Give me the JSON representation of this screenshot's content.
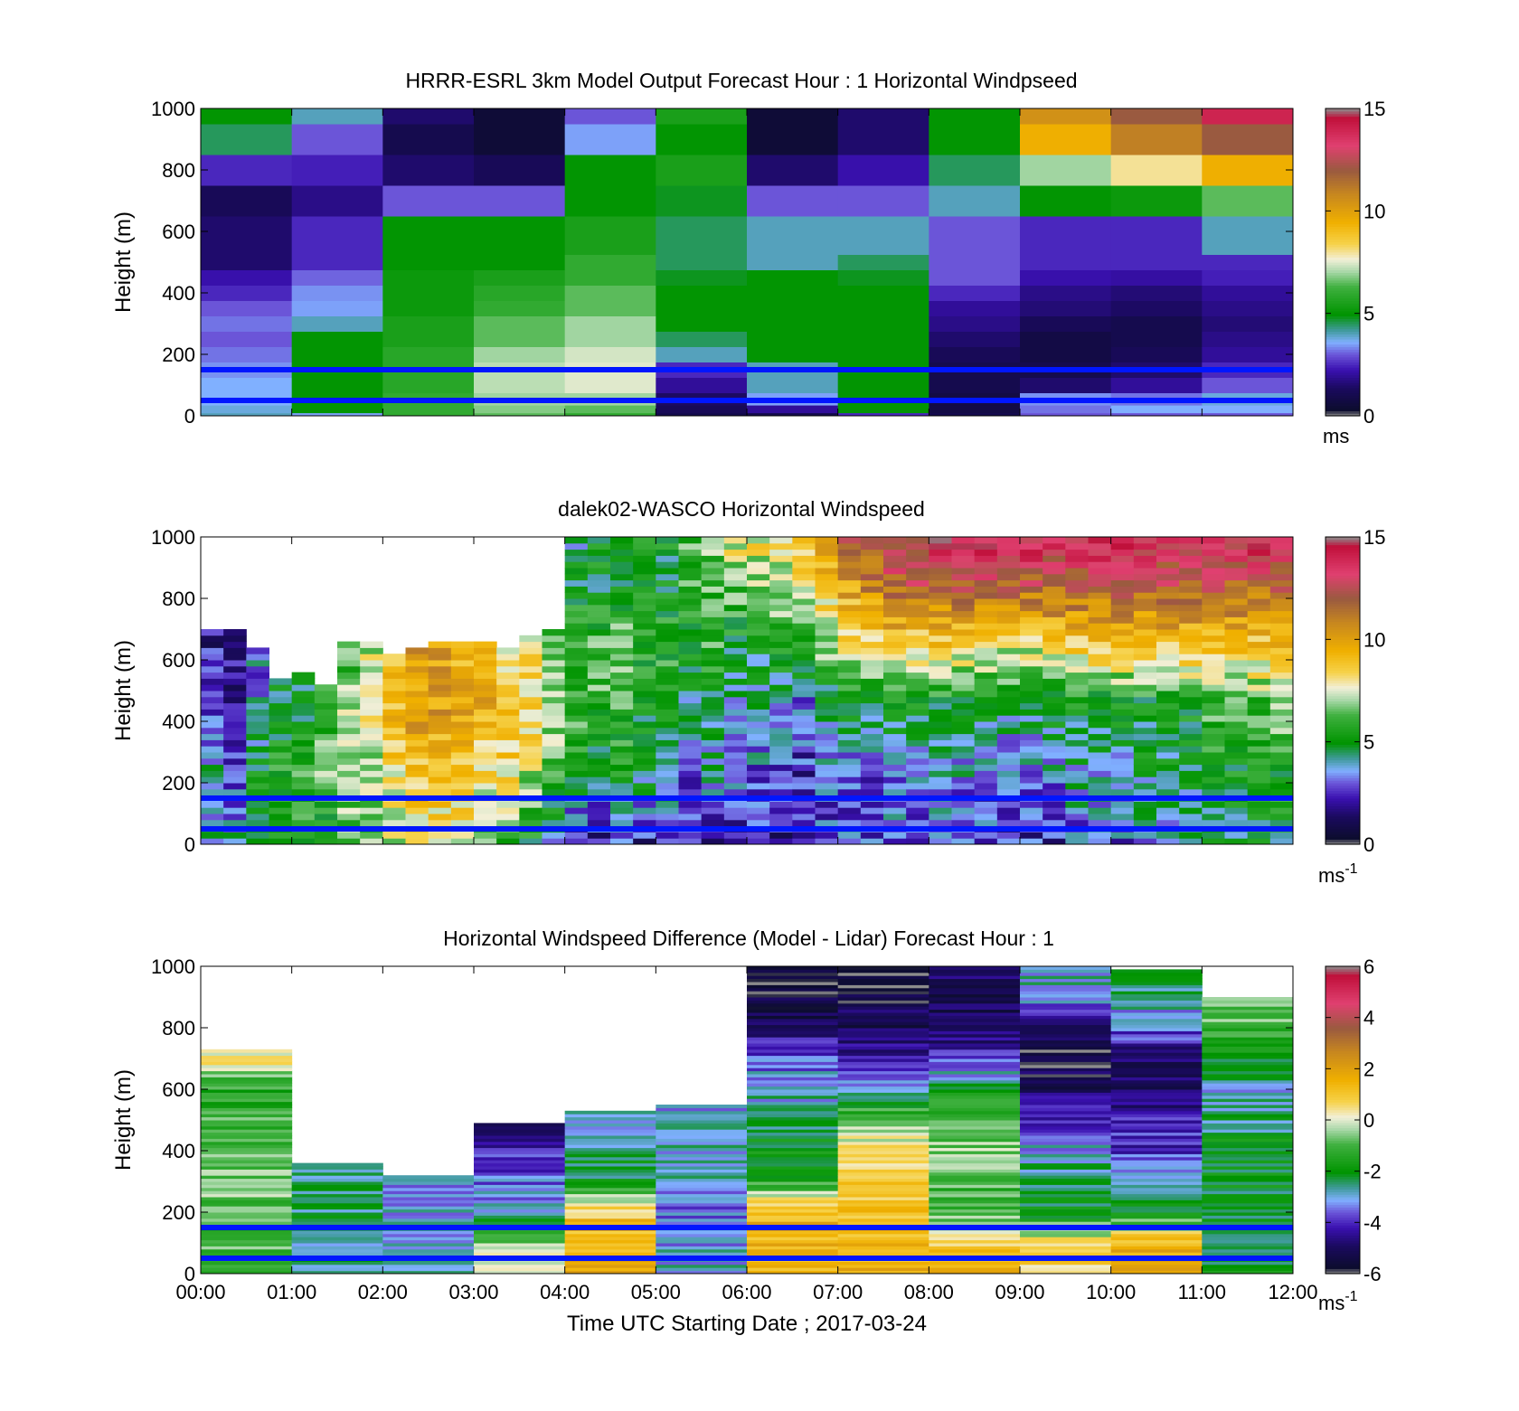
{
  "figure": {
    "xticks": [
      "00:00",
      "01:00",
      "02:00",
      "03:00",
      "04:00",
      "05:00",
      "06:00",
      "07:00",
      "08:00",
      "09:00",
      "10:00",
      "11:00",
      "12:00"
    ],
    "xlabel": "Time UTC  Starting Date ; 2017-03-24",
    "yticks": [
      "0",
      "200",
      "400",
      "600",
      "800",
      "1000"
    ],
    "reference_line_color": "#0016ff",
    "reference_heights_m": [
      150,
      50
    ]
  },
  "chart_data": [
    {
      "type": "heatmap",
      "title": "HRRR-ESRL 3km Model Output   Forecast Hour : 1 Horizontal Windpseed",
      "ylabel": "Height (m)",
      "xlim_hours": [
        0,
        12
      ],
      "ylim": [
        0,
        1000
      ],
      "colorbar": {
        "ticks": [
          "0",
          "5",
          "10",
          "15"
        ],
        "range": [
          0,
          15
        ],
        "unit": "ms"
      },
      "time_step_hours": 1,
      "height_levels_m": [
        0,
        20,
        50,
        100,
        150,
        200,
        250,
        300,
        350,
        400,
        450,
        500,
        550,
        600,
        700,
        800,
        900,
        1000
      ],
      "values": [
        [
          4,
          3.5,
          6,
          6.5,
          6,
          1,
          1,
          2.5,
          1,
          3,
          3,
          3
        ],
        [
          3.8,
          5,
          6,
          6.8,
          6.5,
          1.2,
          2,
          5,
          0.8,
          3.2,
          3.6,
          3.6
        ],
        [
          3.6,
          5,
          6,
          7,
          7,
          1.4,
          3.5,
          5,
          0.8,
          3.4,
          3.2,
          3.8
        ],
        [
          3.6,
          5,
          5.8,
          7.2,
          7.5,
          2,
          4,
          5,
          1,
          1.5,
          2,
          3
        ],
        [
          3.4,
          5,
          5.8,
          7.2,
          7.5,
          2.5,
          4,
          5,
          1,
          1,
          1.5,
          2.5
        ],
        [
          3.2,
          5,
          5.8,
          7,
          7.4,
          4,
          5,
          5,
          1.2,
          0.8,
          1.2,
          2
        ],
        [
          3,
          5,
          5.5,
          6.5,
          7,
          4.5,
          5,
          5,
          1.5,
          0.8,
          1,
          1.8
        ],
        [
          3.2,
          4,
          5.5,
          6.5,
          7,
          5,
          5,
          5,
          1.8,
          1.2,
          1,
          1.6
        ],
        [
          3,
          3.5,
          5.2,
          6,
          6.5,
          5,
          5,
          5,
          2,
          1.6,
          1.4,
          1.8
        ],
        [
          2.5,
          3.4,
          5.2,
          5.8,
          6.5,
          5,
          5,
          5,
          2.5,
          1.8,
          1.6,
          2
        ],
        [
          2.2,
          3.1,
          5.2,
          5.5,
          6,
          4.8,
          5,
          4.8,
          3,
          2.2,
          2.1,
          2.4
        ],
        [
          1.5,
          2.5,
          5,
          5,
          6,
          4.5,
          4,
          4.5,
          3,
          2.5,
          2.5,
          2.5
        ],
        [
          1.5,
          2.5,
          5,
          5,
          5.5,
          4.5,
          4,
          4,
          3,
          2.5,
          2.5,
          4
        ],
        [
          1.5,
          2.5,
          5,
          5,
          5.5,
          4.5,
          4,
          4,
          3,
          2.5,
          2.5,
          4
        ],
        [
          1.2,
          1.8,
          3,
          3,
          5,
          4.8,
          3,
          3,
          4,
          5,
          5.2,
          6.5
        ],
        [
          2.5,
          2.4,
          1.5,
          1.2,
          5,
          5.5,
          1.5,
          2.2,
          4.5,
          7,
          8,
          9.5
        ],
        [
          4.5,
          3,
          1,
          0.5,
          3.5,
          5,
          0.5,
          1.5,
          5,
          9.5,
          11,
          12
        ],
        [
          5,
          4,
          1.5,
          0.5,
          3,
          5.5,
          0.5,
          1.5,
          5,
          10.5,
          12,
          14
        ]
      ]
    },
    {
      "type": "heatmap",
      "title": "dalek02-WASCO  Horizontal Windspeed",
      "ylabel": "Height (m)",
      "xlim_hours": [
        0,
        12
      ],
      "ylim": [
        0,
        1000
      ],
      "colorbar": {
        "ticks": [
          "0",
          "5",
          "10",
          "15"
        ],
        "range": [
          0,
          15
        ],
        "unit": "ms",
        "unit_exponent": "-1"
      },
      "time_step_hours": 0.25,
      "gate_spacing_m": 20,
      "profile_tops_m": [
        700,
        700,
        640,
        540,
        550,
        520,
        650,
        660,
        620,
        640,
        650,
        650,
        650,
        640,
        680,
        700,
        1000,
        1000,
        1000,
        1000,
        1000,
        1000,
        1000,
        1000,
        1000,
        1000,
        1000,
        1000,
        1000,
        1000,
        1000,
        1000,
        1000,
        1000,
        1000,
        1000,
        1000,
        1000,
        1000,
        1000,
        1000,
        1000,
        1000,
        1000,
        1000,
        1000,
        1000,
        1000
      ],
      "profile_anchor_heights_m": [
        0,
        200,
        450,
        650,
        850,
        1000
      ],
      "profile_anchor_values": [
        [
          4,
          4,
          3,
          2,
          2,
          2
        ],
        [
          4,
          3,
          2,
          2,
          2,
          2
        ],
        [
          4.5,
          5,
          4,
          3,
          3,
          3
        ],
        [
          5,
          5.5,
          5,
          4,
          4,
          4
        ],
        [
          5,
          6,
          5,
          4,
          4,
          4
        ],
        [
          5,
          6.5,
          6,
          5,
          5,
          5
        ],
        [
          6,
          7,
          7,
          6,
          6,
          6
        ],
        [
          6.5,
          7,
          8,
          7,
          7,
          7
        ],
        [
          7,
          8,
          9,
          9,
          9,
          9
        ],
        [
          8,
          9,
          10,
          10,
          10,
          10
        ],
        [
          7.5,
          9,
          10,
          10,
          10,
          10
        ],
        [
          7,
          9,
          10,
          9,
          9,
          9
        ],
        [
          6.5,
          8,
          9.5,
          9,
          9,
          9
        ],
        [
          6,
          8,
          9,
          8,
          8,
          8
        ],
        [
          5,
          7,
          8.5,
          8,
          8,
          8
        ],
        [
          4,
          6,
          7,
          6,
          6,
          6
        ],
        [
          2,
          5,
          6,
          6,
          5,
          4
        ],
        [
          2,
          4,
          6,
          6,
          5,
          5
        ],
        [
          2.5,
          5,
          6,
          6.5,
          5,
          5
        ],
        [
          2,
          4.5,
          5,
          6,
          5,
          5
        ],
        [
          2,
          4,
          5,
          6,
          5,
          5
        ],
        [
          2.5,
          3,
          4.5,
          5.5,
          6,
          6
        ],
        [
          2,
          4,
          4.5,
          6,
          6,
          7
        ],
        [
          2,
          3.5,
          4,
          5,
          6.5,
          8
        ],
        [
          2.5,
          3,
          4,
          5,
          7,
          8
        ],
        [
          2,
          2.5,
          3.5,
          6,
          7,
          8
        ],
        [
          2.5,
          2.5,
          3,
          6,
          8,
          9
        ],
        [
          3,
          3,
          4,
          7,
          9,
          10
        ],
        [
          3,
          3,
          5,
          8,
          10,
          12
        ],
        [
          3,
          3,
          5,
          8,
          11,
          12
        ],
        [
          3,
          3.5,
          5,
          8.5,
          12,
          13
        ],
        [
          3,
          3.5,
          5,
          8.5,
          12,
          13
        ],
        [
          3,
          4,
          5,
          8.5,
          12,
          14
        ],
        [
          3,
          3.5,
          5,
          8.5,
          12,
          14
        ],
        [
          3,
          3,
          5,
          8,
          12,
          14
        ],
        [
          2.5,
          3,
          4.5,
          8,
          12,
          14
        ],
        [
          2.5,
          3,
          4.5,
          8,
          12,
          14
        ],
        [
          2.5,
          3.5,
          5,
          8.5,
          12,
          14
        ],
        [
          3,
          4,
          5,
          8.5,
          12,
          14
        ],
        [
          3,
          4,
          5,
          9,
          12,
          14
        ],
        [
          3,
          4,
          5,
          9,
          12,
          14
        ],
        [
          3.5,
          4.5,
          5,
          9,
          12,
          14
        ],
        [
          4,
          4.5,
          5,
          9,
          12,
          14
        ],
        [
          4,
          4.5,
          5.5,
          9,
          12,
          14
        ],
        [
          4.5,
          5,
          6,
          9,
          12,
          14
        ],
        [
          4.5,
          5,
          6,
          9,
          12,
          14
        ],
        [
          5,
          5,
          6,
          9,
          12,
          14
        ],
        [
          5,
          5.5,
          6.5,
          9,
          12,
          14
        ]
      ]
    },
    {
      "type": "heatmap",
      "title": "Horizontal Windspeed Difference (Model - Lidar) Forecast Hour : 1",
      "ylabel": "Height (m)",
      "xlim_hours": [
        0,
        12
      ],
      "ylim": [
        0,
        1000
      ],
      "colorbar": {
        "ticks": [
          "-6",
          "-4",
          "-2",
          "0",
          "2",
          "4",
          "6"
        ],
        "range": [
          -6,
          6
        ],
        "unit": "ms",
        "unit_exponent": "-1"
      },
      "time_step_hours": 1,
      "valid_ranges_m": [
        [
          0,
          730
        ],
        [
          0,
          360
        ],
        [
          0,
          320
        ],
        [
          0,
          490
        ],
        [
          0,
          530
        ],
        [
          0,
          550
        ],
        [
          0,
          1000
        ],
        [
          0,
          1000
        ],
        [
          0,
          1000
        ],
        [
          0,
          1000
        ],
        [
          0,
          990
        ],
        [
          0,
          900
        ]
      ],
      "anchor_heights_m": [
        0,
        100,
        200,
        300,
        400,
        500,
        600,
        700,
        800,
        900,
        1000
      ],
      "anchor_values": [
        [
          -1,
          -1,
          -1,
          -0.5,
          -1,
          -1,
          -1.5,
          0.5,
          0.5,
          0.5,
          0.5
        ],
        [
          -2.5,
          -2.5,
          -2.5,
          -2.5,
          -2.5,
          -2.5,
          -2.5,
          -2.5,
          -2.5,
          -2.5,
          -2.5
        ],
        [
          -3,
          -3,
          -3,
          -3,
          -3,
          -3,
          -3,
          -3,
          -3,
          -3,
          -3
        ],
        [
          0.5,
          -0.5,
          -3,
          -3.5,
          -4,
          -5,
          -5,
          -5,
          -5,
          -5,
          -5
        ],
        [
          2,
          1.5,
          1,
          -2,
          -2.5,
          -3,
          -3,
          -3,
          -3,
          -3,
          -3
        ],
        [
          -3,
          -3,
          -3.5,
          -3,
          -3,
          -3,
          -3,
          -3,
          -3,
          -3,
          -3
        ],
        [
          1.5,
          1.5,
          1.5,
          -1.5,
          -2,
          -2.5,
          -3,
          -3.5,
          -5,
          -5.5,
          -5.5
        ],
        [
          1.5,
          1.5,
          1,
          1,
          0.5,
          -0.5,
          -3,
          -4,
          -5,
          -5.5,
          -6
        ],
        [
          1.5,
          1,
          -1,
          -1,
          -0.5,
          -1,
          -2,
          -4,
          -5,
          -5,
          -5
        ],
        [
          1,
          0.5,
          -2,
          -2.5,
          -3,
          -4,
          -5,
          -5.5,
          -5,
          -3,
          -3
        ],
        [
          1.5,
          1.5,
          -2,
          -2.5,
          -4,
          -4,
          -5,
          -5,
          -3.5,
          -2.5,
          -2.5
        ],
        [
          -2,
          -2,
          -2,
          -2,
          -2,
          -2.5,
          -3,
          -2,
          -1,
          -0.5,
          -0.5
        ]
      ]
    }
  ]
}
